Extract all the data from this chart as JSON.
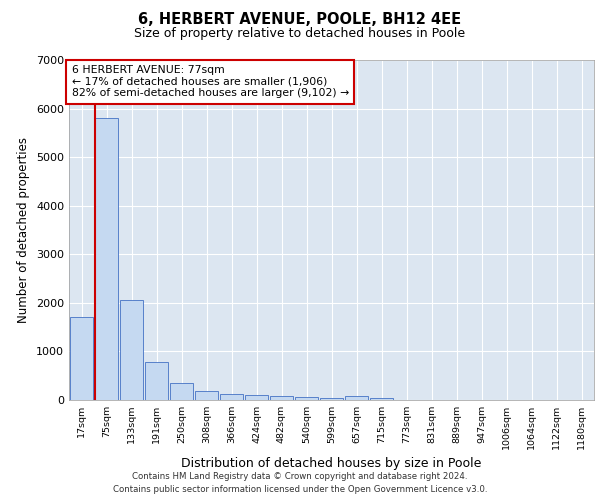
{
  "title": "6, HERBERT AVENUE, POOLE, BH12 4EE",
  "subtitle": "Size of property relative to detached houses in Poole",
  "xlabel": "Distribution of detached houses by size in Poole",
  "ylabel": "Number of detached properties",
  "categories": [
    "17sqm",
    "75sqm",
    "133sqm",
    "191sqm",
    "250sqm",
    "308sqm",
    "366sqm",
    "424sqm",
    "482sqm",
    "540sqm",
    "599sqm",
    "657sqm",
    "715sqm",
    "773sqm",
    "831sqm",
    "889sqm",
    "947sqm",
    "1006sqm",
    "1064sqm",
    "1122sqm",
    "1180sqm"
  ],
  "values": [
    1700,
    5800,
    2050,
    780,
    340,
    185,
    130,
    95,
    80,
    55,
    50,
    75,
    50,
    0,
    0,
    0,
    0,
    0,
    0,
    0,
    0
  ],
  "bar_color": "#c5d9f1",
  "bar_edge_color": "#4472c4",
  "annotation_title": "6 HERBERT AVENUE: 77sqm",
  "annotation_line1": "← 17% of detached houses are smaller (1,906)",
  "annotation_line2": "82% of semi-detached houses are larger (9,102) →",
  "annotation_box_color": "#ffffff",
  "annotation_box_edge_color": "#cc0000",
  "property_line_color": "#cc0000",
  "footer1": "Contains HM Land Registry data © Crown copyright and database right 2024.",
  "footer2": "Contains public sector information licensed under the Open Government Licence v3.0.",
  "ylim": [
    0,
    7000
  ],
  "yticks": [
    0,
    1000,
    2000,
    3000,
    4000,
    5000,
    6000,
    7000
  ],
  "grid_color": "#dce6f1",
  "background_color": "#dce6f1"
}
